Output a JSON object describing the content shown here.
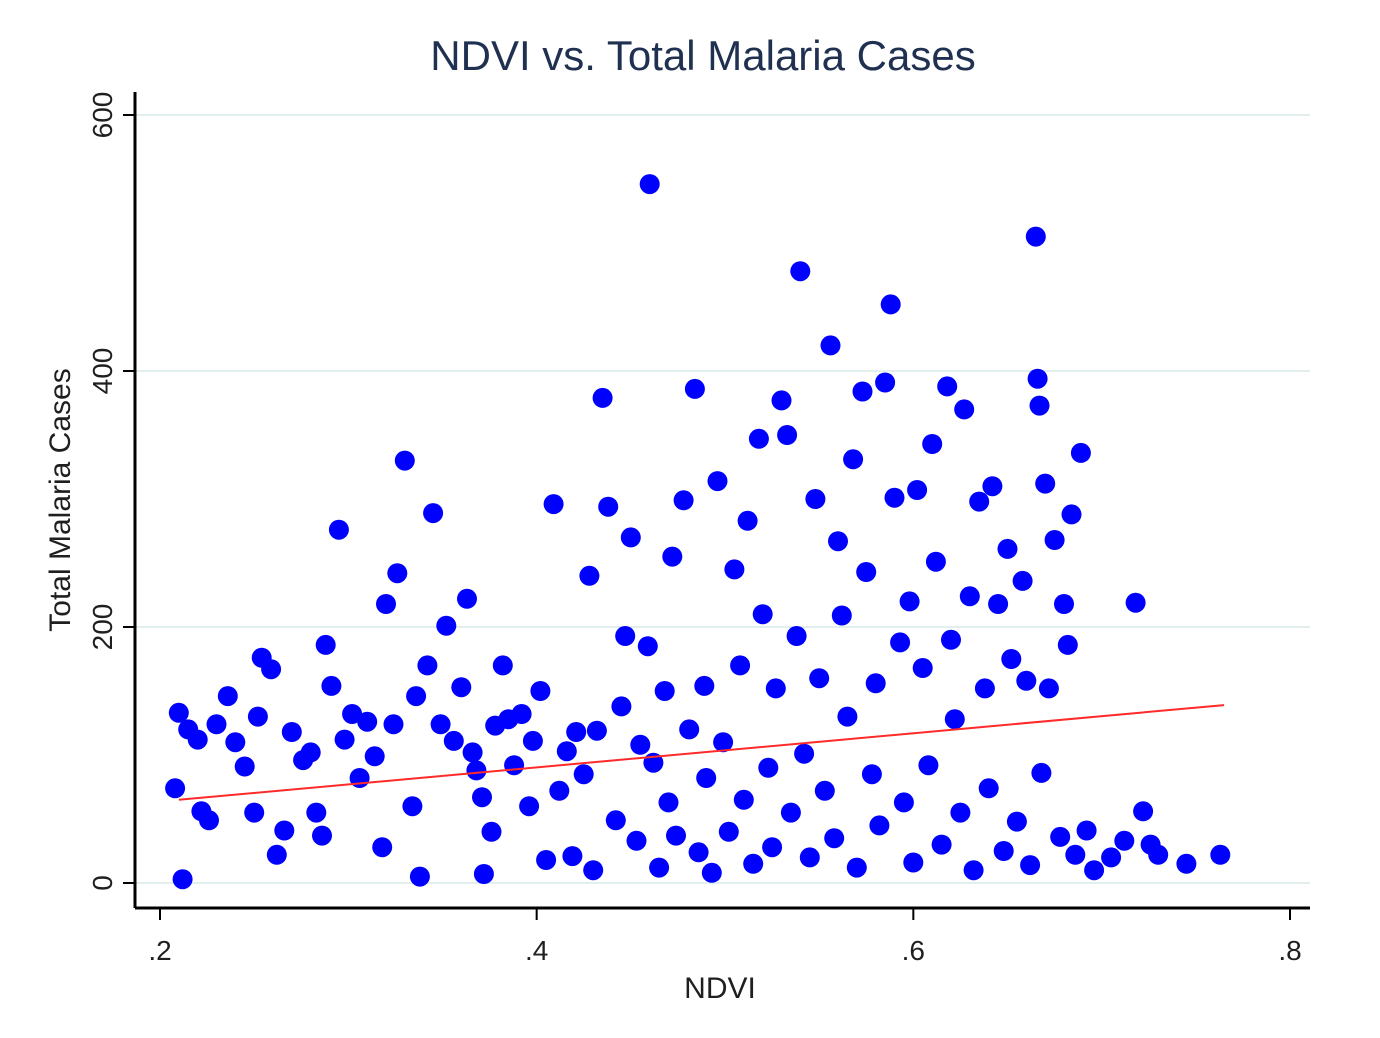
{
  "chart_data": {
    "type": "scatter",
    "title": "NDVI vs. Total Malaria Cases",
    "xlabel": "NDVI",
    "ylabel": "Total Malaria Cases",
    "xlim": [
      0.2,
      0.8
    ],
    "ylim": [
      0,
      600
    ],
    "xticks": [
      0.2,
      0.4,
      0.6,
      0.8
    ],
    "xtick_labels": [
      ".2",
      ".4",
      ".6",
      ".8"
    ],
    "yticks": [
      0,
      200,
      400,
      600
    ],
    "ytick_labels": [
      "0",
      "200",
      "400",
      "600"
    ],
    "grid": "horizontal",
    "legend": "none",
    "colors": {
      "points": "#0000ff",
      "fit_line": "#ff2a2a",
      "grid": "#e3efef",
      "title": "#1f3050",
      "axis": "#000000"
    },
    "fit_line": {
      "x": [
        0.21,
        0.765
      ],
      "y": [
        65,
        139
      ]
    },
    "series": [
      {
        "points": [
          [
            0.212,
            3
          ],
          [
            0.21,
            133
          ],
          [
            0.215,
            120
          ],
          [
            0.22,
            112
          ],
          [
            0.208,
            74
          ],
          [
            0.222,
            56
          ],
          [
            0.226,
            49
          ],
          [
            0.23,
            124
          ],
          [
            0.236,
            146
          ],
          [
            0.24,
            110
          ],
          [
            0.245,
            91
          ],
          [
            0.25,
            55
          ],
          [
            0.252,
            130
          ],
          [
            0.254,
            176
          ],
          [
            0.259,
            167
          ],
          [
            0.262,
            22
          ],
          [
            0.266,
            41
          ],
          [
            0.27,
            118
          ],
          [
            0.276,
            96
          ],
          [
            0.28,
            102
          ],
          [
            0.283,
            55
          ],
          [
            0.286,
            37
          ],
          [
            0.288,
            186
          ],
          [
            0.291,
            154
          ],
          [
            0.295,
            276
          ],
          [
            0.298,
            112
          ],
          [
            0.302,
            132
          ],
          [
            0.306,
            82
          ],
          [
            0.31,
            126
          ],
          [
            0.314,
            99
          ],
          [
            0.318,
            28
          ],
          [
            0.32,
            218
          ],
          [
            0.324,
            124
          ],
          [
            0.326,
            242
          ],
          [
            0.33,
            330
          ],
          [
            0.334,
            60
          ],
          [
            0.336,
            146
          ],
          [
            0.338,
            5
          ],
          [
            0.342,
            170
          ],
          [
            0.345,
            289
          ],
          [
            0.349,
            124
          ],
          [
            0.352,
            201
          ],
          [
            0.356,
            111
          ],
          [
            0.36,
            153
          ],
          [
            0.363,
            222
          ],
          [
            0.366,
            102
          ],
          [
            0.368,
            88
          ],
          [
            0.371,
            67
          ],
          [
            0.372,
            7
          ],
          [
            0.376,
            40
          ],
          [
            0.378,
            123
          ],
          [
            0.382,
            170
          ],
          [
            0.385,
            128
          ],
          [
            0.388,
            92
          ],
          [
            0.392,
            132
          ],
          [
            0.396,
            60
          ],
          [
            0.398,
            111
          ],
          [
            0.402,
            150
          ],
          [
            0.405,
            18
          ],
          [
            0.409,
            296
          ],
          [
            0.412,
            72
          ],
          [
            0.416,
            103
          ],
          [
            0.419,
            21
          ],
          [
            0.421,
            118
          ],
          [
            0.425,
            85
          ],
          [
            0.428,
            240
          ],
          [
            0.43,
            10
          ],
          [
            0.432,
            119
          ],
          [
            0.435,
            379
          ],
          [
            0.438,
            294
          ],
          [
            0.442,
            49
          ],
          [
            0.445,
            138
          ],
          [
            0.447,
            193
          ],
          [
            0.45,
            270
          ],
          [
            0.453,
            33
          ],
          [
            0.455,
            108
          ],
          [
            0.459,
            185
          ],
          [
            0.46,
            546
          ],
          [
            0.462,
            94
          ],
          [
            0.465,
            12
          ],
          [
            0.468,
            150
          ],
          [
            0.47,
            63
          ],
          [
            0.472,
            255
          ],
          [
            0.474,
            37
          ],
          [
            0.478,
            299
          ],
          [
            0.481,
            120
          ],
          [
            0.484,
            386
          ],
          [
            0.486,
            24
          ],
          [
            0.489,
            154
          ],
          [
            0.49,
            82
          ],
          [
            0.493,
            8
          ],
          [
            0.496,
            314
          ],
          [
            0.499,
            110
          ],
          [
            0.502,
            40
          ],
          [
            0.505,
            245
          ],
          [
            0.508,
            170
          ],
          [
            0.51,
            65
          ],
          [
            0.512,
            283
          ],
          [
            0.515,
            15
          ],
          [
            0.518,
            347
          ],
          [
            0.52,
            210
          ],
          [
            0.523,
            90
          ],
          [
            0.525,
            28
          ],
          [
            0.527,
            152
          ],
          [
            0.53,
            377
          ],
          [
            0.533,
            350
          ],
          [
            0.535,
            55
          ],
          [
            0.538,
            193
          ],
          [
            0.54,
            478
          ],
          [
            0.542,
            101
          ],
          [
            0.545,
            20
          ],
          [
            0.548,
            300
          ],
          [
            0.55,
            160
          ],
          [
            0.553,
            72
          ],
          [
            0.556,
            420
          ],
          [
            0.558,
            35
          ],
          [
            0.56,
            267
          ],
          [
            0.562,
            209
          ],
          [
            0.565,
            130
          ],
          [
            0.568,
            331
          ],
          [
            0.57,
            12
          ],
          [
            0.573,
            384
          ],
          [
            0.575,
            243
          ],
          [
            0.578,
            85
          ],
          [
            0.58,
            156
          ],
          [
            0.582,
            45
          ],
          [
            0.585,
            391
          ],
          [
            0.588,
            452
          ],
          [
            0.59,
            301
          ],
          [
            0.593,
            188
          ],
          [
            0.595,
            63
          ],
          [
            0.598,
            220
          ],
          [
            0.6,
            16
          ],
          [
            0.602,
            307
          ],
          [
            0.605,
            168
          ],
          [
            0.608,
            92
          ],
          [
            0.61,
            343
          ],
          [
            0.612,
            251
          ],
          [
            0.615,
            30
          ],
          [
            0.618,
            388
          ],
          [
            0.62,
            190
          ],
          [
            0.622,
            128
          ],
          [
            0.625,
            55
          ],
          [
            0.627,
            370
          ],
          [
            0.63,
            224
          ],
          [
            0.632,
            10
          ],
          [
            0.635,
            298
          ],
          [
            0.638,
            152
          ],
          [
            0.64,
            74
          ],
          [
            0.642,
            310
          ],
          [
            0.645,
            218
          ],
          [
            0.648,
            25
          ],
          [
            0.65,
            261
          ],
          [
            0.652,
            175
          ],
          [
            0.655,
            48
          ],
          [
            0.658,
            236
          ],
          [
            0.66,
            158
          ],
          [
            0.662,
            14
          ],
          [
            0.665,
            505
          ],
          [
            0.666,
            394
          ],
          [
            0.667,
            373
          ],
          [
            0.668,
            86
          ],
          [
            0.67,
            312
          ],
          [
            0.672,
            152
          ],
          [
            0.675,
            268
          ],
          [
            0.678,
            36
          ],
          [
            0.68,
            218
          ],
          [
            0.682,
            186
          ],
          [
            0.684,
            288
          ],
          [
            0.686,
            22
          ],
          [
            0.689,
            336
          ],
          [
            0.692,
            41
          ],
          [
            0.696,
            10
          ],
          [
            0.705,
            20
          ],
          [
            0.712,
            33
          ],
          [
            0.718,
            219
          ],
          [
            0.722,
            56
          ],
          [
            0.726,
            30
          ],
          [
            0.73,
            22
          ],
          [
            0.745,
            15
          ],
          [
            0.763,
            22
          ]
        ]
      }
    ]
  }
}
